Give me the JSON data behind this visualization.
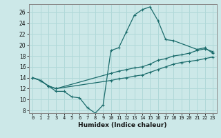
{
  "xlabel": "Humidex (Indice chaleur)",
  "bg_color": "#cce8e8",
  "grid_color": "#b0d8d8",
  "line_color": "#1a6b6b",
  "xlim": [
    -0.5,
    23.5
  ],
  "ylim": [
    7.5,
    27.5
  ],
  "xticks": [
    0,
    1,
    2,
    3,
    4,
    5,
    6,
    7,
    8,
    9,
    10,
    11,
    12,
    13,
    14,
    15,
    16,
    17,
    18,
    19,
    20,
    21,
    22,
    23
  ],
  "yticks": [
    8,
    10,
    12,
    14,
    16,
    18,
    20,
    22,
    24,
    26
  ],
  "line1_x": [
    0,
    1,
    2,
    3,
    4,
    5,
    6,
    7,
    8,
    9,
    10,
    11,
    12,
    13,
    14,
    15,
    16,
    17,
    18,
    21,
    22,
    23
  ],
  "line1_y": [
    14.0,
    13.5,
    12.5,
    11.5,
    11.5,
    10.5,
    10.3,
    8.5,
    7.5,
    9.0,
    19.0,
    19.5,
    22.5,
    25.5,
    26.5,
    27.0,
    24.5,
    21.0,
    20.8,
    19.2,
    19.5,
    18.5
  ],
  "line2_x": [
    0,
    1,
    2,
    3,
    10,
    11,
    12,
    13,
    14,
    15,
    16,
    17,
    18,
    19,
    20,
    21,
    22,
    23
  ],
  "line2_y": [
    14.0,
    13.5,
    12.5,
    12.0,
    14.8,
    15.2,
    15.5,
    15.8,
    16.0,
    16.5,
    17.2,
    17.5,
    18.0,
    18.2,
    18.5,
    19.0,
    19.3,
    18.8
  ],
  "line3_x": [
    0,
    1,
    2,
    3,
    10,
    11,
    12,
    13,
    14,
    15,
    16,
    17,
    18,
    19,
    20,
    21,
    22,
    23
  ],
  "line3_y": [
    14.0,
    13.5,
    12.5,
    12.0,
    13.5,
    13.8,
    14.0,
    14.3,
    14.5,
    15.0,
    15.5,
    16.0,
    16.5,
    16.8,
    17.0,
    17.2,
    17.5,
    17.8
  ]
}
